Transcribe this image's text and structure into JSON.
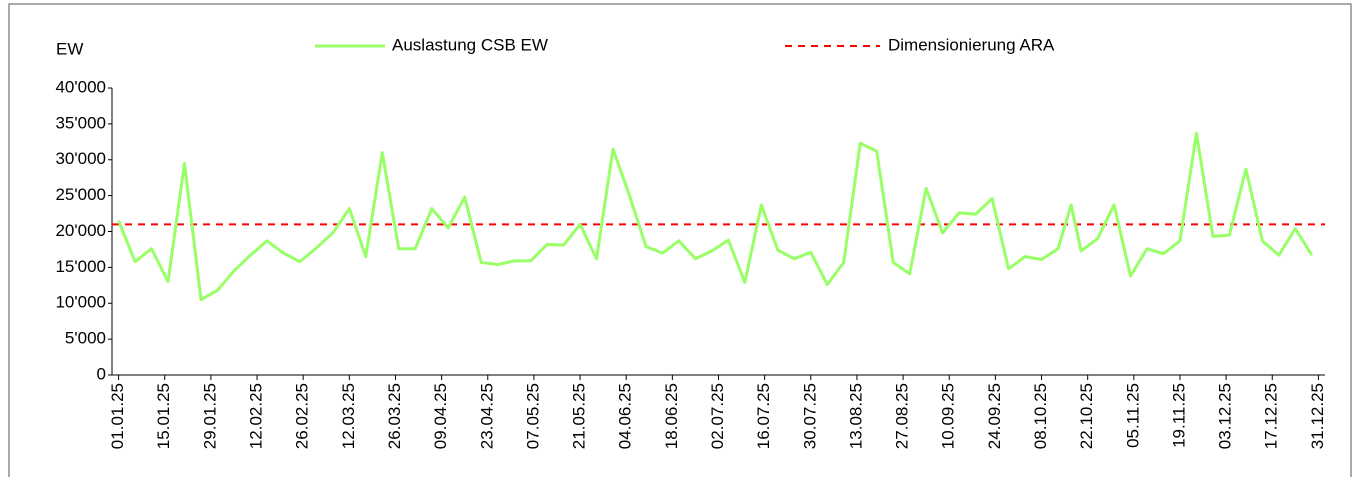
{
  "chart_data": {
    "type": "line",
    "y_label": "EW",
    "x": [
      0,
      5,
      10,
      15,
      20,
      25,
      30,
      35,
      40,
      45,
      50,
      55,
      60,
      65,
      70,
      75,
      80,
      85,
      90,
      95,
      100,
      105,
      110,
      115,
      120,
      125,
      130,
      135,
      140,
      145,
      150,
      155,
      160,
      165,
      170,
      175,
      180,
      185,
      190,
      195,
      200,
      205,
      210,
      215,
      220,
      225,
      230,
      235,
      240,
      245,
      250,
      255,
      260,
      265,
      270,
      275,
      280,
      285,
      289,
      292,
      297,
      302,
      307,
      312,
      317,
      322,
      327,
      332,
      337,
      342,
      347,
      352,
      357,
      362
    ],
    "series": [
      {
        "name": "Auslastung CSB EW",
        "color": "#99ff66",
        "values": [
          21500,
          15800,
          17600,
          13000,
          29500,
          10500,
          11800,
          14500,
          16700,
          18700,
          17000,
          15800,
          17700,
          19800,
          23200,
          16500,
          31000,
          17600,
          17600,
          23200,
          20500,
          24800,
          15700,
          15400,
          15900,
          15900,
          18200,
          18100,
          21000,
          16200,
          31500,
          25000,
          17900,
          17000,
          18700,
          16200,
          17300,
          18800,
          12900,
          23700,
          17400,
          16200,
          17100,
          12600,
          15700,
          32300,
          31200,
          15700,
          14100,
          26000,
          19800,
          22600,
          22400,
          24600,
          14800,
          16500,
          16100,
          17600,
          23700,
          17300,
          19000,
          23700,
          13800,
          17600,
          16900,
          18700,
          33700,
          19300,
          19500,
          28700,
          18700,
          16700,
          20400,
          16700
        ]
      }
    ],
    "reference_line": {
      "name": "Dimensionierung ARA",
      "value": 21000,
      "color": "#ff0000"
    },
    "xlim": [
      -2,
      366
    ],
    "xticks": [
      {
        "value": 0,
        "label": "01.01.25"
      },
      {
        "value": 14,
        "label": "15.01.25"
      },
      {
        "value": 28,
        "label": "29.01.25"
      },
      {
        "value": 42,
        "label": "12.02.25"
      },
      {
        "value": 56,
        "label": "26.02.25"
      },
      {
        "value": 70,
        "label": "12.03.25"
      },
      {
        "value": 84,
        "label": "26.03.25"
      },
      {
        "value": 98,
        "label": "09.04.25"
      },
      {
        "value": 112,
        "label": "23.04.25"
      },
      {
        "value": 126,
        "label": "07.05.25"
      },
      {
        "value": 140,
        "label": "21.05.25"
      },
      {
        "value": 154,
        "label": "04.06.25"
      },
      {
        "value": 168,
        "label": "18.06.25"
      },
      {
        "value": 182,
        "label": "02.07.25"
      },
      {
        "value": 196,
        "label": "16.07.25"
      },
      {
        "value": 210,
        "label": "30.07.25"
      },
      {
        "value": 224,
        "label": "13.08.25"
      },
      {
        "value": 238,
        "label": "27.08.25"
      },
      {
        "value": 252,
        "label": "10.09.25"
      },
      {
        "value": 266,
        "label": "24.09.25"
      },
      {
        "value": 280,
        "label": "08.10.25"
      },
      {
        "value": 294,
        "label": "22.10.25"
      },
      {
        "value": 308,
        "label": "05.11.25"
      },
      {
        "value": 322,
        "label": "19.11.25"
      },
      {
        "value": 336,
        "label": "03.12.25"
      },
      {
        "value": 350,
        "label": "17.12.25"
      },
      {
        "value": 364,
        "label": "31.12.25"
      }
    ],
    "ylim": [
      0,
      40000
    ],
    "yticks": [
      0,
      {
        "value": 5000,
        "label": "5'000"
      },
      {
        "value": 10000,
        "label": "10'000"
      },
      {
        "value": 15000,
        "label": "15'000"
      },
      {
        "value": 20000,
        "label": "20'000"
      },
      {
        "value": 25000,
        "label": "25'000"
      },
      {
        "value": 30000,
        "label": "30'000"
      },
      {
        "value": 35000,
        "label": "35'000"
      },
      {
        "value": 40000,
        "label": "40'000"
      }
    ],
    "grid": false
  }
}
